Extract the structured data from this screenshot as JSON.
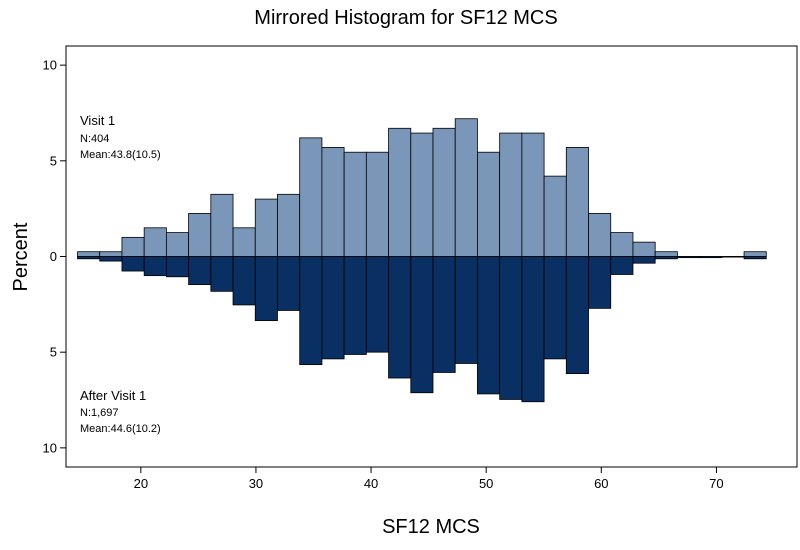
{
  "chart_data": {
    "type": "bar",
    "title": "Mirrored Histogram for SF12 MCS",
    "xlabel": "SF12 MCS",
    "ylabel": "Percent",
    "xlim": [
      13.5,
      77
    ],
    "ylim": [
      -11,
      11
    ],
    "x_ticks": [
      20,
      30,
      40,
      50,
      60,
      70
    ],
    "y_ticks": [
      {
        "value": 10,
        "label": "10"
      },
      {
        "value": 5,
        "label": "5"
      },
      {
        "value": 0,
        "label": "0"
      },
      {
        "value": -5,
        "label": "5"
      },
      {
        "value": -10,
        "label": "10"
      }
    ],
    "bin_edges": [
      14.5,
      16.43,
      18.36,
      20.29,
      22.22,
      24.15,
      26.08,
      28.01,
      29.94,
      31.87,
      33.8,
      35.73,
      37.66,
      39.59,
      41.52,
      43.45,
      45.38,
      47.31,
      49.24,
      51.17,
      53.1,
      55.03,
      56.96,
      58.89,
      60.82,
      62.75,
      64.68,
      66.61,
      68.54,
      70.47,
      72.4,
      74.33
    ],
    "series": [
      {
        "name": "Visit 1",
        "direction": "up",
        "color": "#7a97ba",
        "values": [
          0.25,
          0.25,
          1.0,
          1.5,
          1.25,
          2.25,
          3.25,
          1.5,
          3.0,
          3.25,
          6.2,
          5.7,
          5.45,
          5.45,
          6.7,
          6.45,
          6.7,
          7.2,
          5.45,
          6.45,
          6.45,
          4.2,
          5.7,
          2.25,
          1.25,
          0.75,
          0.25,
          0,
          0,
          0,
          0.25
        ]
      },
      {
        "name": "After Visit 1",
        "direction": "down",
        "color": "#0a2f63",
        "values": [
          0.12,
          0.24,
          0.76,
          1.0,
          1.06,
          1.47,
          1.82,
          2.53,
          3.35,
          2.82,
          5.65,
          5.35,
          5.12,
          5.0,
          6.35,
          7.12,
          6.06,
          5.59,
          7.18,
          7.47,
          7.59,
          5.35,
          6.12,
          2.71,
          0.94,
          0.35,
          0.12,
          0.06,
          0.06,
          0,
          0.12
        ]
      }
    ],
    "annotations": [
      {
        "group": "top",
        "title": "Visit 1",
        "n": "N:404",
        "mean": "Mean:43.8(10.5)"
      },
      {
        "group": "bottom",
        "title": "After Visit 1",
        "n": "N:1,697",
        "mean": "Mean:44.6(10.2)"
      }
    ],
    "grid": false,
    "legend": "none"
  }
}
